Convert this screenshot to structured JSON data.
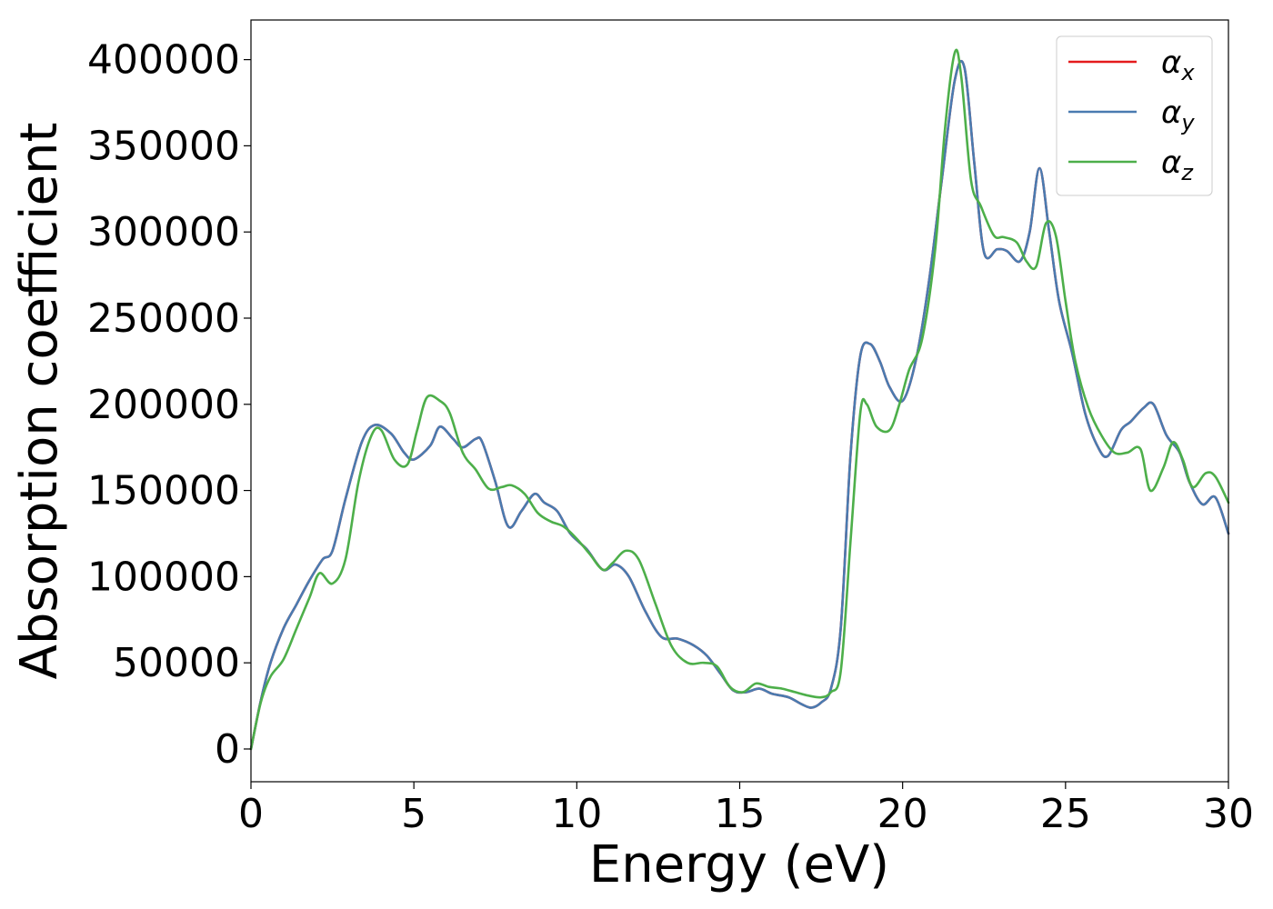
{
  "chart_data": {
    "type": "line",
    "title": "",
    "xlabel": "Energy (eV)",
    "ylabel": "Absorption coefficient",
    "xlim": [
      0,
      30
    ],
    "ylim": [
      -19000,
      423000
    ],
    "xticks": [
      0,
      5,
      10,
      15,
      20,
      25,
      30
    ],
    "yticks": [
      0,
      50000,
      100000,
      150000,
      200000,
      250000,
      300000,
      350000,
      400000
    ],
    "grid": false,
    "legend_position": "top-right",
    "series": [
      {
        "name": "α_x",
        "symbol": "α",
        "subscript": "x",
        "color": "#e41a1c",
        "x": [
          0,
          0.3,
          0.6,
          1.0,
          1.4,
          1.8,
          2.2,
          2.5,
          2.9,
          3.4,
          3.8,
          4.3,
          4.7,
          5.0,
          5.5,
          5.8,
          6.2,
          6.5,
          6.9,
          7.1,
          7.5,
          7.9,
          8.3,
          8.7,
          9.0,
          9.4,
          9.8,
          10.3,
          10.8,
          11.2,
          11.6,
          12.1,
          12.6,
          13.1,
          13.6,
          14.0,
          14.4,
          14.8,
          15.2,
          15.6,
          16.0,
          16.5,
          16.9,
          17.2,
          17.5,
          17.8,
          18.1,
          18.4,
          18.7,
          19.0,
          19.3,
          19.6,
          20.0,
          20.4,
          20.8,
          21.2,
          21.6,
          21.9,
          22.2,
          22.5,
          22.9,
          23.2,
          23.6,
          23.9,
          24.2,
          24.5,
          24.8,
          25.2,
          25.6,
          26.0,
          26.3,
          26.7,
          27.0,
          27.4,
          27.7,
          28.1,
          28.5,
          28.8,
          29.2,
          29.6,
          30.0
        ],
        "values": [
          0,
          28000,
          50000,
          70000,
          84000,
          98000,
          110000,
          115000,
          145000,
          178000,
          188000,
          183000,
          172000,
          168000,
          176000,
          187000,
          180000,
          175000,
          180000,
          178000,
          155000,
          129000,
          138000,
          148000,
          143000,
          138000,
          125000,
          116000,
          104000,
          107000,
          100000,
          80000,
          65000,
          64000,
          60000,
          54000,
          44000,
          34000,
          33000,
          35000,
          32000,
          30000,
          26000,
          24000,
          27000,
          35000,
          70000,
          170000,
          228000,
          235000,
          225000,
          210000,
          202000,
          225000,
          270000,
          330000,
          388000,
          395000,
          340000,
          288000,
          290000,
          289000,
          283000,
          300000,
          337000,
          300000,
          260000,
          230000,
          195000,
          175000,
          170000,
          185000,
          190000,
          198000,
          200000,
          182000,
          172000,
          155000,
          142000,
          146000,
          125000
        ]
      },
      {
        "name": "α_y",
        "symbol": "α",
        "subscript": "y",
        "color": "#4a7bb0",
        "x": [
          0,
          0.3,
          0.6,
          1.0,
          1.4,
          1.8,
          2.2,
          2.5,
          2.9,
          3.4,
          3.8,
          4.3,
          4.7,
          5.0,
          5.5,
          5.8,
          6.2,
          6.5,
          6.9,
          7.1,
          7.5,
          7.9,
          8.3,
          8.7,
          9.0,
          9.4,
          9.8,
          10.3,
          10.8,
          11.2,
          11.6,
          12.1,
          12.6,
          13.1,
          13.6,
          14.0,
          14.4,
          14.8,
          15.2,
          15.6,
          16.0,
          16.5,
          16.9,
          17.2,
          17.5,
          17.8,
          18.1,
          18.4,
          18.7,
          19.0,
          19.3,
          19.6,
          20.0,
          20.4,
          20.8,
          21.2,
          21.6,
          21.9,
          22.2,
          22.5,
          22.9,
          23.2,
          23.6,
          23.9,
          24.2,
          24.5,
          24.8,
          25.2,
          25.6,
          26.0,
          26.3,
          26.7,
          27.0,
          27.4,
          27.7,
          28.1,
          28.5,
          28.8,
          29.2,
          29.6,
          30.0
        ],
        "values": [
          0,
          28000,
          50000,
          70000,
          84000,
          98000,
          110000,
          115000,
          145000,
          178000,
          188000,
          183000,
          172000,
          168000,
          176000,
          187000,
          180000,
          175000,
          180000,
          178000,
          155000,
          129000,
          138000,
          148000,
          143000,
          138000,
          125000,
          116000,
          104000,
          107000,
          100000,
          80000,
          65000,
          64000,
          60000,
          54000,
          44000,
          34000,
          33000,
          35000,
          32000,
          30000,
          26000,
          24000,
          27000,
          35000,
          70000,
          170000,
          228000,
          235000,
          225000,
          210000,
          202000,
          225000,
          270000,
          330000,
          388000,
          395000,
          340000,
          288000,
          290000,
          289000,
          283000,
          300000,
          337000,
          300000,
          260000,
          230000,
          195000,
          175000,
          170000,
          185000,
          190000,
          198000,
          200000,
          182000,
          172000,
          155000,
          142000,
          146000,
          125000
        ]
      },
      {
        "name": "α_z",
        "symbol": "α",
        "subscript": "z",
        "color": "#4daf4a",
        "x": [
          0,
          0.3,
          0.6,
          1.0,
          1.4,
          1.8,
          2.1,
          2.5,
          2.9,
          3.3,
          3.7,
          4.0,
          4.4,
          4.8,
          5.1,
          5.4,
          5.8,
          6.1,
          6.5,
          6.9,
          7.3,
          7.7,
          8.0,
          8.4,
          8.8,
          9.2,
          9.6,
          10.0,
          10.4,
          10.8,
          11.1,
          11.5,
          11.9,
          12.4,
          12.9,
          13.4,
          13.9,
          14.3,
          14.7,
          15.1,
          15.5,
          15.9,
          16.3,
          16.7,
          17.1,
          17.5,
          17.8,
          18.1,
          18.4,
          18.7,
          18.9,
          19.2,
          19.6,
          19.9,
          20.2,
          20.6,
          21.0,
          21.3,
          21.6,
          21.8,
          22.1,
          22.4,
          22.8,
          23.1,
          23.5,
          23.8,
          24.1,
          24.4,
          24.7,
          25.0,
          25.3,
          25.7,
          26.1,
          26.5,
          26.9,
          27.3,
          27.6,
          28.0,
          28.3,
          28.6,
          28.9,
          29.3,
          29.6,
          30.0
        ],
        "values": [
          0,
          27000,
          42000,
          52000,
          70000,
          88000,
          102000,
          96000,
          110000,
          155000,
          182000,
          185000,
          168000,
          165000,
          185000,
          204000,
          202000,
          195000,
          172000,
          162000,
          151000,
          152000,
          153000,
          148000,
          137000,
          132000,
          129000,
          122000,
          113000,
          104000,
          108000,
          115000,
          110000,
          85000,
          60000,
          50000,
          50000,
          48000,
          36000,
          33000,
          38000,
          36000,
          35000,
          33000,
          31000,
          30000,
          33000,
          45000,
          120000,
          195000,
          200000,
          187000,
          185000,
          200000,
          220000,
          238000,
          290000,
          360000,
          404000,
          390000,
          330000,
          315000,
          298000,
          297000,
          294000,
          283000,
          280000,
          305000,
          298000,
          260000,
          225000,
          198000,
          182000,
          172000,
          172000,
          174000,
          150000,
          163000,
          178000,
          168000,
          152000,
          160000,
          158000,
          143000
        ]
      }
    ]
  }
}
